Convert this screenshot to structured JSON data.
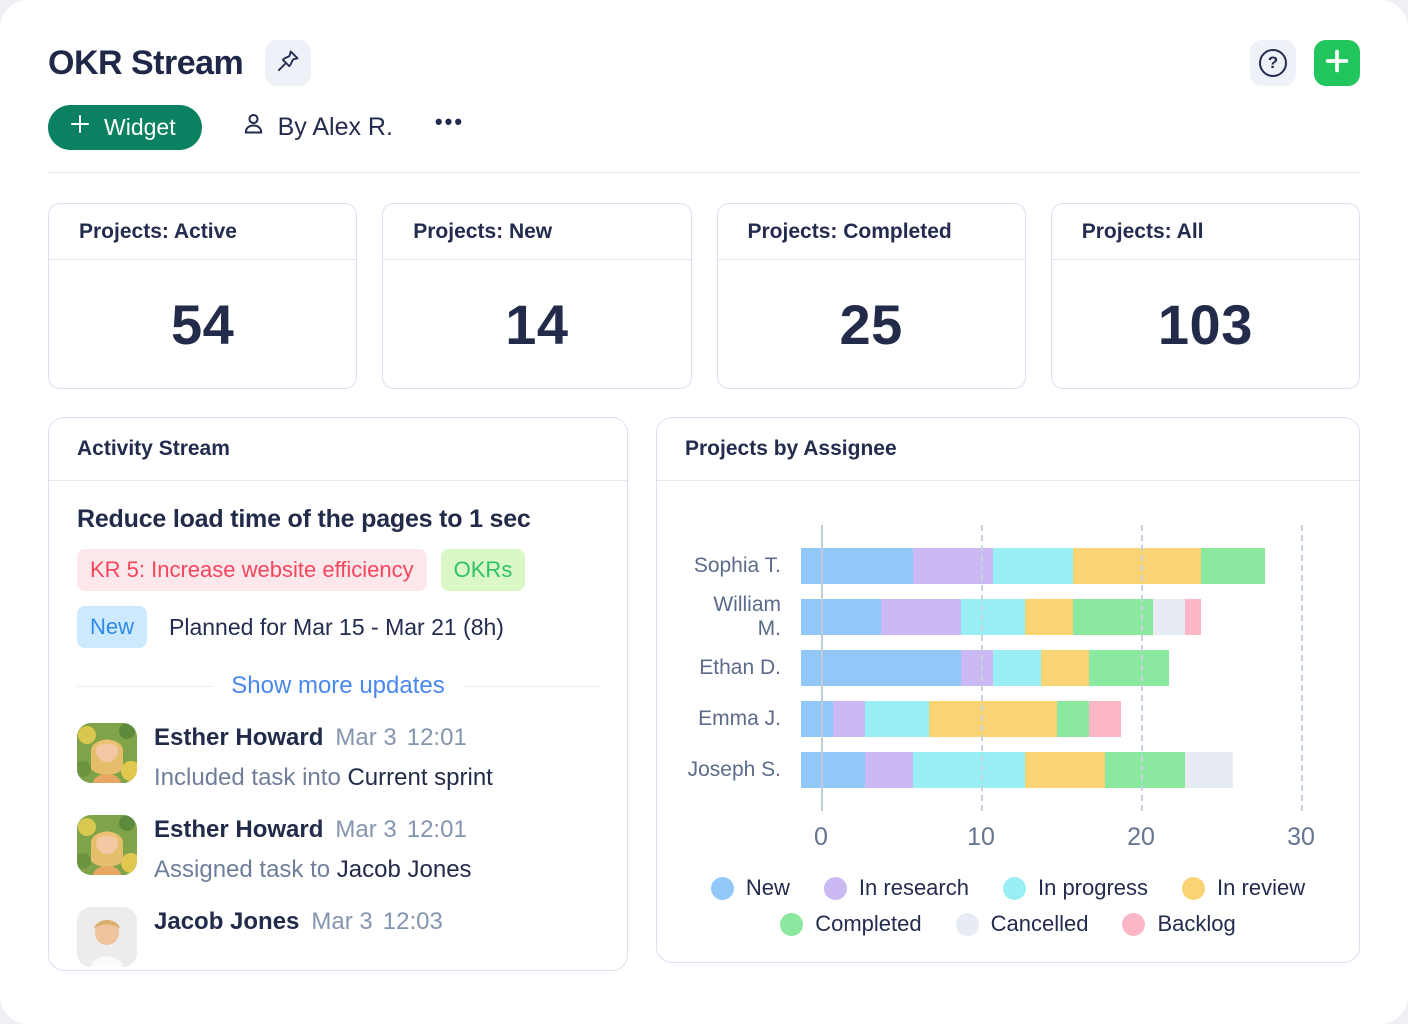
{
  "header": {
    "title": "OKR Stream",
    "widget_button_label": "Widget",
    "author": "By Alex R.",
    "icons": {
      "help": "?",
      "more": "•••"
    }
  },
  "colors": {
    "brand_green": "#0A8160",
    "add_green": "#21C55D",
    "link_blue": "#4A87F0",
    "kr_badge_text": "#F5455C",
    "okr_badge_text": "#2EC463",
    "new_badge_text": "#2E8BE9"
  },
  "stats": [
    {
      "label": "Projects: Active",
      "value": "54"
    },
    {
      "label": "Projects: New",
      "value": "14"
    },
    {
      "label": "Projects: Completed",
      "value": "25"
    },
    {
      "label": "Projects: All",
      "value": "103"
    }
  ],
  "activity": {
    "title": "Activity Stream",
    "task_title": "Reduce load time of the pages to 1 sec",
    "kr_badge": "KR 5: Increase website efficiency",
    "okr_badge": "OKRs",
    "status_badge": "New",
    "planned": "Planned for Mar 15 - Mar 21 (8h)",
    "show_more": "Show more updates",
    "items": [
      {
        "name": "Esther Howard",
        "date": "Mar 3",
        "time": "12:01",
        "action": "Included task into",
        "object": "Current sprint"
      },
      {
        "name": "Esther Howard",
        "date": "Mar 3",
        "time": "12:01",
        "action": "Assigned task to",
        "object": "Jacob Jones"
      },
      {
        "name": "Jacob Jones",
        "date": "Mar 3",
        "time": "12:03",
        "action": "",
        "object": ""
      }
    ]
  },
  "chart_panel": {
    "title": "Projects by Assignee"
  },
  "chart_data": {
    "type": "bar",
    "orientation": "horizontal",
    "stacked": true,
    "title": "Projects by Assignee",
    "categories": [
      "Sophia T.",
      "William M.",
      "Ethan D.",
      "Emma J.",
      "Joseph S."
    ],
    "series": [
      {
        "name": "New",
        "color": "#92C8F8",
        "values": [
          7,
          5,
          10,
          2,
          4
        ]
      },
      {
        "name": "In research",
        "color": "#CBB9F4",
        "values": [
          5,
          5,
          2,
          2,
          3
        ]
      },
      {
        "name": "In progress",
        "color": "#9AEFF4",
        "values": [
          5,
          4,
          3,
          4,
          7
        ]
      },
      {
        "name": "In review",
        "color": "#F9D374",
        "values": [
          8,
          3,
          3,
          8,
          5
        ]
      },
      {
        "name": "Completed",
        "color": "#8BE99F",
        "values": [
          4,
          5,
          5,
          2,
          5
        ]
      },
      {
        "name": "Cancelled",
        "color": "#E7EBF3",
        "values": [
          0,
          2,
          0,
          0,
          3
        ]
      },
      {
        "name": "Backlog",
        "color": "#FBB7C5",
        "values": [
          0,
          1,
          0,
          2,
          0
        ]
      }
    ],
    "totals": [
      29,
      25,
      23,
      20,
      27
    ],
    "xticks": [
      0,
      10,
      20,
      30
    ],
    "xlim": [
      0,
      30
    ],
    "gridlines": "vertical-dashed",
    "legend_position": "bottom"
  }
}
